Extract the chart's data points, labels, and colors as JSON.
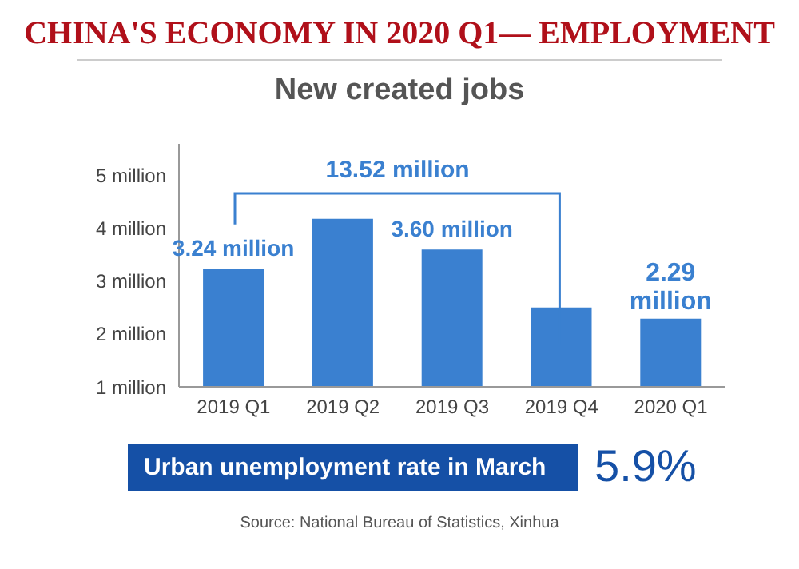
{
  "chart_data": {
    "type": "bar",
    "title": "CHINA'S ECONOMY IN 2020 Q1— EMPLOYMENT",
    "subtitle": "New created jobs",
    "categories": [
      "2019 Q1",
      "2019 Q2",
      "2019 Q3",
      "2019 Q4",
      "2020 Q1"
    ],
    "values": [
      3.24,
      4.18,
      3.6,
      2.5,
      2.29
    ],
    "value_labels": [
      "3.24 million",
      null,
      "3.60 million",
      null,
      "2.29 million"
    ],
    "color": "#3a80d0",
    "ylim": [
      1,
      5.6
    ],
    "yticks": [
      {
        "value": 1,
        "label": "1 million"
      },
      {
        "value": 2,
        "label": "2 million"
      },
      {
        "value": 3,
        "label": "3 million"
      },
      {
        "value": 4,
        "label": "4 million"
      },
      {
        "value": 5,
        "label": "5 million"
      }
    ],
    "grid": false,
    "annotations": [
      "13.52 million",
      "Urban unemployment rate in March",
      "5.9%",
      "Source: National Bureau of Statistics, Xinhua"
    ]
  }
}
